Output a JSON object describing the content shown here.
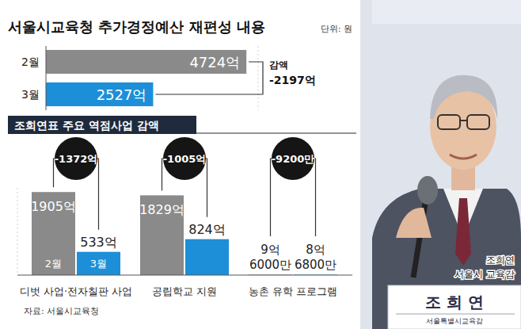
{
  "chart_data": [
    {
      "type": "bar",
      "orientation": "horizontal",
      "title": "서울시교육청 추가경정예산 재편성 내용",
      "subtitle": "단위: 원",
      "categories": [
        "2월",
        "3월"
      ],
      "values": [
        4724,
        2527
      ],
      "value_labels": [
        "4724억",
        "2527억"
      ],
      "colors": [
        "#8a8a8a",
        "#1d8fd8"
      ],
      "xlim": [
        0,
        5000
      ],
      "tick_labels": false,
      "data_labels": true,
      "change": {
        "label": "감액",
        "value": -2197,
        "value_label": "-2197억"
      }
    },
    {
      "type": "bar",
      "title": "조희연표 주요 역점사업 감액",
      "categories": [
        "디벗 사업·전자칠판 사업",
        "공립학교 지원",
        "농촌 유학 프로그램"
      ],
      "series": [
        {
          "name": "2월",
          "color": "#8a8a8a",
          "values": [
            1905,
            1829,
            9.6
          ],
          "value_labels": [
            "1905억",
            "1829억",
            "9억 6000만"
          ]
        },
        {
          "name": "3월",
          "color": "#1d8fd8",
          "values": [
            533,
            824,
            8.68
          ],
          "value_labels": [
            "533억",
            "824억",
            "8억 6800만"
          ]
        }
      ],
      "changes": {
        "values": [
          -1372,
          -1005,
          -0.92
        ],
        "value_labels": [
          "-1372억",
          "-1005억",
          "-9200만"
        ]
      },
      "ylim": [
        0,
        2000
      ],
      "tick_labels": false,
      "data_labels": true
    }
  ],
  "source": "자료: 서울시교육청",
  "photo": {
    "caption": [
      "조희연",
      "서울시 교육감"
    ],
    "nameplate": {
      "name": "조 희 연",
      "title": "서울특별시교육감"
    }
  }
}
